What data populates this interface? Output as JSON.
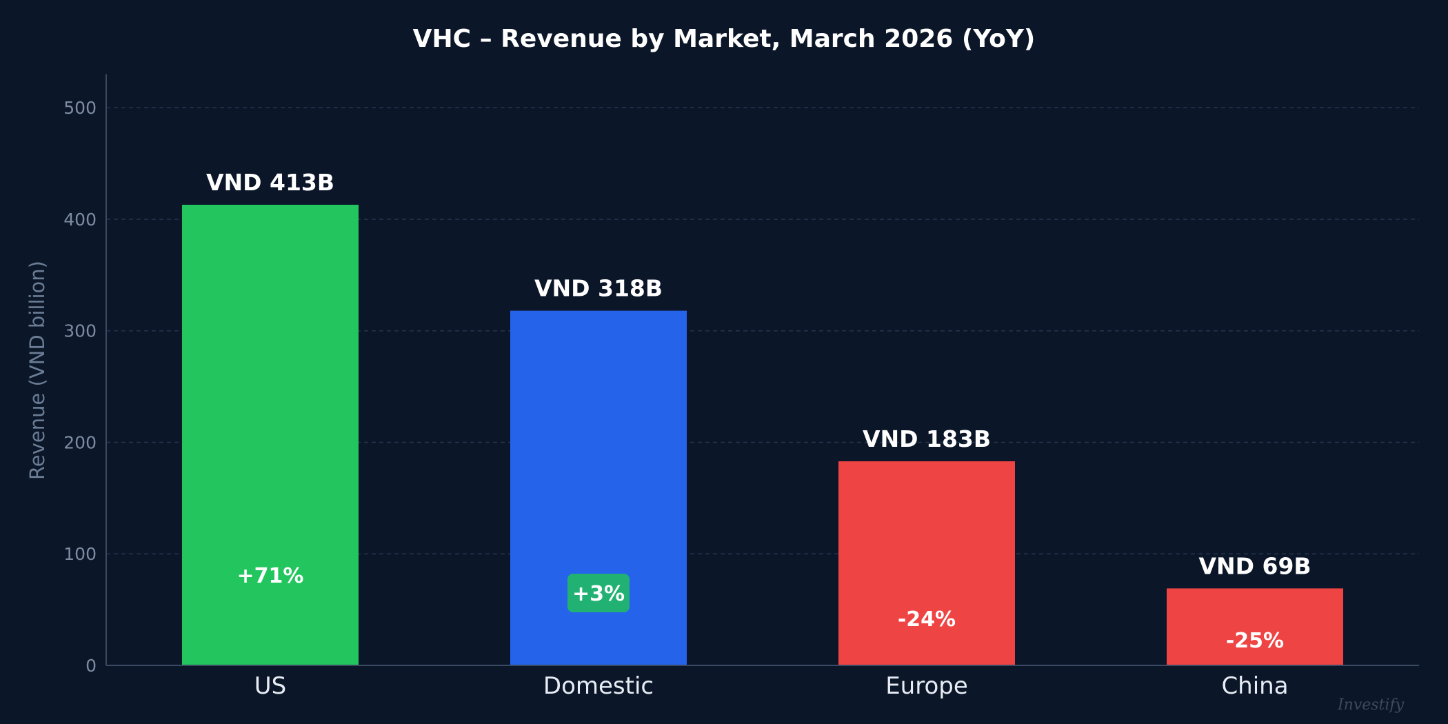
{
  "chart_data": {
    "type": "bar",
    "title": "VHC – Revenue by Market, March 2026 (YoY)",
    "xlabel": "",
    "ylabel": "Revenue (VND billion)",
    "ylim": [
      0,
      530
    ],
    "yticks": [
      0,
      100,
      200,
      300,
      400,
      500
    ],
    "grid": true,
    "categories": [
      "US",
      "Domestic",
      "Europe",
      "China"
    ],
    "values": [
      413,
      318,
      183,
      69
    ],
    "value_labels": [
      "VND 413B",
      "VND 318B",
      "VND 183B",
      "VND 69B"
    ],
    "yoy_change_labels": [
      "+71%",
      "+3%",
      "-24%",
      "-25%"
    ],
    "bar_colors": [
      "#22c55e",
      "#2563eb",
      "#ef4444",
      "#ef4444"
    ],
    "change_badge": {
      "index": 1,
      "color": "#21b273"
    }
  },
  "watermark": "Investify"
}
